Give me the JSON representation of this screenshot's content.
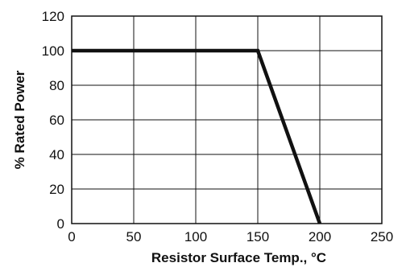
{
  "chart_data": {
    "type": "line",
    "title": "",
    "xlabel": "Resistor Surface Temp., °C",
    "ylabel": "% Rated Power",
    "xlim": [
      0,
      250
    ],
    "ylim": [
      0,
      120
    ],
    "x_ticks": [
      0,
      50,
      100,
      150,
      200,
      250
    ],
    "y_ticks": [
      0,
      20,
      40,
      60,
      80,
      100,
      120
    ],
    "x_tick_labels": [
      "0",
      "50",
      "100",
      "150",
      "200",
      "250"
    ],
    "y_tick_labels": [
      "0",
      "20",
      "40",
      "60",
      "80",
      "100",
      "120"
    ],
    "grid": true,
    "legend": "none",
    "series": [
      {
        "x": [
          0,
          150,
          200
        ],
        "y": [
          100,
          100,
          0
        ],
        "color": "#111111"
      }
    ]
  }
}
